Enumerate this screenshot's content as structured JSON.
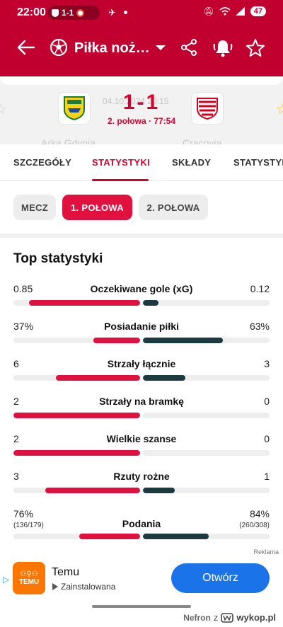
{
  "status_bar": {
    "time": "22:00",
    "pill_score": "1-1",
    "battery": "47",
    "icons": [
      "mute-icon",
      "wifi-icon",
      "signal-icon"
    ]
  },
  "app_bar": {
    "title": "Piłka noż…",
    "icons": [
      "back-arrow-icon",
      "football-icon",
      "dropdown-caret-icon",
      "share-icon",
      "bell-icon",
      "star-icon"
    ]
  },
  "match": {
    "date": "04.10.2024 20:15",
    "score": "1-1",
    "status": "2. połowa · 77:54",
    "home": "Arka Gdynia",
    "away": "Cracovia",
    "home_color": "#f6d313",
    "away_color": "#d7001e"
  },
  "tabs": [
    {
      "label": "SZCZEGÓŁY",
      "active": false
    },
    {
      "label": "STATYSTYKI",
      "active": true
    },
    {
      "label": "SKŁADY",
      "active": false
    },
    {
      "label": "STATYSTYK",
      "active": false
    }
  ],
  "periods": [
    {
      "label": "MECZ",
      "active": false
    },
    {
      "label": "1. POŁOWA",
      "active": true
    },
    {
      "label": "2. POŁOWA",
      "active": false
    }
  ],
  "section": {
    "title": "Top statystyki"
  },
  "colors": {
    "home_bar": "#e0113f",
    "away_bar": "#1d3a40",
    "accent": "#d8002e",
    "header": "#c1002f"
  },
  "stats": [
    {
      "label": "Oczekiwane gole (xG)",
      "home": "0.85",
      "away": "0.12",
      "home_frac": 0.876,
      "away_frac": 0.124
    },
    {
      "label": "Posiadanie piłki",
      "home": "37%",
      "away": "63%",
      "home_frac": 0.37,
      "away_frac": 0.63
    },
    {
      "label": "Strzały łącznie",
      "home": "6",
      "away": "3",
      "home_frac": 0.667,
      "away_frac": 0.333
    },
    {
      "label": "Strzały na bramkę",
      "home": "2",
      "away": "0",
      "home_frac": 1.0,
      "away_frac": 0.0
    },
    {
      "label": "Wielkie szanse",
      "home": "2",
      "away": "0",
      "home_frac": 1.0,
      "away_frac": 0.0
    },
    {
      "label": "Rzuty rożne",
      "home": "3",
      "away": "1",
      "home_frac": 0.75,
      "away_frac": 0.25
    },
    {
      "label": "Podania",
      "home": "76%",
      "away": "84%",
      "home_sub": "(136/179)",
      "away_sub": "(260/308)",
      "home_frac": 0.48,
      "away_frac": 0.52
    }
  ],
  "ad": {
    "label": "Reklama",
    "name": "Temu",
    "status": "Zainstalowana",
    "logo_text": "TEMU",
    "button": "Otwórz"
  },
  "watermark": {
    "user": "Nefron",
    "z": "z",
    "brand": "wykop.pl"
  }
}
